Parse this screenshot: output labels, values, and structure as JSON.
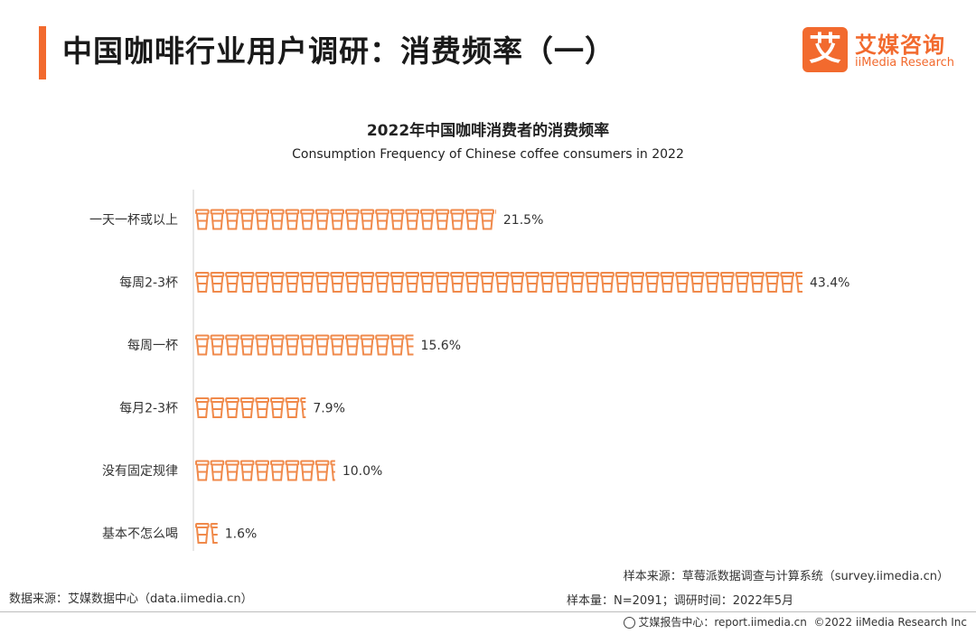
{
  "header": {
    "title": "中国咖啡行业用户调研：消费频率（一）",
    "logo_mark": "艾",
    "logo_cn": "艾媒咨询",
    "logo_en": "iiMedia Research"
  },
  "chart_data": {
    "type": "bar",
    "orientation": "horizontal",
    "title": "2022年中国咖啡消费者的消费频率",
    "subtitle": "Consumption Frequency of Chinese coffee consumers in 2022",
    "categories": [
      "一天一杯或以上",
      "每周2-3杯",
      "每周一杯",
      "每月2-3杯",
      "没有固定规律",
      "基本不怎么喝"
    ],
    "values": [
      21.5,
      43.4,
      15.6,
      7.9,
      10.0,
      1.6
    ],
    "value_labels": [
      "21.5%",
      "43.4%",
      "15.6%",
      "7.9%",
      "10.0%",
      "1.6%"
    ],
    "unit": "%",
    "bar_color": "#f08a4b",
    "mark": "coffee-cup-icon"
  },
  "footer": {
    "data_source": "数据来源：艾媒数据中心（data.iimedia.cn）",
    "sample_source": "样本来源：草莓派数据调查与计算系统（survey.iimedia.cn）",
    "sample_size": "样本量：N=2091；调研时间：2022年5月",
    "report_center": "艾媒报告中心：report.iimedia.cn",
    "copyright": "©2022  iiMedia Research  Inc"
  },
  "colors": {
    "accent": "#f26a2e",
    "bar": "#f08a4b"
  }
}
